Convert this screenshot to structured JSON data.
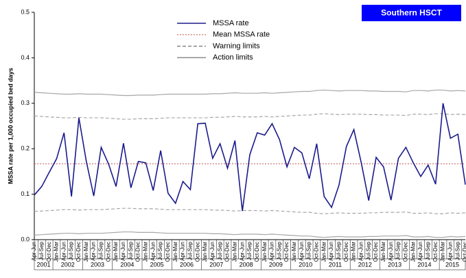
{
  "chart_data": {
    "type": "line",
    "badge": "Southern HSCT",
    "ylabel": "MSSA rate per 1,000 occupied bed days",
    "ylim": [
      0,
      0.5
    ],
    "yticks": [
      {
        "value": 0,
        "label": "0.0"
      },
      0.1,
      0.2,
      0.3,
      0.4,
      0.5
    ],
    "categories": [
      "Apr-Jun",
      "Jul-Sep",
      "Oct-Dec",
      "Jan-Mar",
      "Apr-Jun",
      "Jul-Sep",
      "Oct-Dec",
      "Jan-Mar",
      "Apr-Jun",
      "Jul-Sep",
      "Oct-Dec",
      "Jan-Mar",
      "Apr-Jun",
      "Jul-Sep",
      "Oct-Dec",
      "Jan-Mar",
      "Apr-Jun",
      "Jul-Sep",
      "Oct-Dec",
      "Jan-Mar",
      "Apr-Jun",
      "Jul-Sep",
      "Oct-Dec",
      "Jan-Mar",
      "Apr-Jun",
      "Jul-Sep",
      "Oct-Dec",
      "Jan-Mar",
      "Apr-Jun",
      "Jul-Sep",
      "Oct-Dec",
      "Jan-Mar",
      "Apr-Jun",
      "Jul-Sep",
      "Oct-Dec",
      "Jan-Mar",
      "Apr-Jun",
      "Jul-Sep",
      "Oct-Dec",
      "Jan-Mar",
      "Apr-Jun",
      "Jul-Sep",
      "Oct-Dec",
      "Jan-Mar",
      "Apr-Jun",
      "Jul-Sep",
      "Oct-Dec",
      "Jan-Mar",
      "Apr-Jun",
      "Jul-Sep",
      "Oct-Dec",
      "Jan-Mar",
      "Apr-Jun",
      "Jul-Sep",
      "Oct-Dec",
      "Jan-Mar",
      "Apr-Jun",
      "Jul-Sep",
      "Oct-Dec"
    ],
    "years": [
      "2001",
      "2002",
      "2003",
      "2004",
      "2005",
      "2006",
      "2007",
      "2008",
      "2009",
      "2010",
      "2011",
      "2012",
      "2013",
      "2014",
      "2015"
    ],
    "series": [
      {
        "name": "MSSA rate",
        "color": "#1a1a8c",
        "values": [
          0.098,
          0.117,
          0.148,
          0.178,
          0.235,
          0.095,
          0.268,
          0.172,
          0.096,
          0.203,
          0.166,
          0.117,
          0.212,
          0.114,
          0.172,
          0.169,
          0.108,
          0.196,
          0.102,
          0.08,
          0.128,
          0.11,
          0.255,
          0.256,
          0.179,
          0.211,
          0.157,
          0.218,
          0.063,
          0.187,
          0.235,
          0.23,
          0.255,
          0.22,
          0.16,
          0.203,
          0.191,
          0.134,
          0.211,
          0.095,
          0.071,
          0.12,
          0.205,
          0.242,
          0.169,
          0.086,
          0.181,
          0.16,
          0.087,
          0.179,
          0.203,
          0.169,
          0.139,
          0.164,
          0.122,
          0.3,
          0.223,
          0.232,
          0.121
        ]
      }
    ],
    "mean": {
      "name": "Mean MSSA rate",
      "color": "#c0504d",
      "value": 0.167
    },
    "limits": [
      {
        "name": "Warning limits",
        "color": "#a6a6a6",
        "dash": true,
        "upper": [
          0.272,
          0.271,
          0.27,
          0.269,
          0.268,
          0.268,
          0.269,
          0.268,
          0.268,
          0.268,
          0.267,
          0.266,
          0.265,
          0.265,
          0.266,
          0.266,
          0.266,
          0.267,
          0.268,
          0.268,
          0.268,
          0.268,
          0.268,
          0.268,
          0.269,
          0.269,
          0.27,
          0.271,
          0.27,
          0.27,
          0.27,
          0.271,
          0.27,
          0.271,
          0.272,
          0.273,
          0.274,
          0.274,
          0.276,
          0.277,
          0.276,
          0.275,
          0.276,
          0.276,
          0.276,
          0.275,
          0.275,
          0.274,
          0.274,
          0.274,
          0.273,
          0.276,
          0.276,
          0.275,
          0.277,
          0.277,
          0.275,
          0.276,
          0.275
        ],
        "lower": [
          0.062,
          0.063,
          0.064,
          0.065,
          0.066,
          0.066,
          0.065,
          0.066,
          0.066,
          0.066,
          0.067,
          0.068,
          0.069,
          0.069,
          0.068,
          0.068,
          0.068,
          0.067,
          0.066,
          0.066,
          0.066,
          0.066,
          0.066,
          0.066,
          0.065,
          0.065,
          0.064,
          0.063,
          0.064,
          0.064,
          0.064,
          0.063,
          0.064,
          0.063,
          0.062,
          0.061,
          0.06,
          0.06,
          0.058,
          0.057,
          0.058,
          0.059,
          0.058,
          0.058,
          0.058,
          0.059,
          0.059,
          0.06,
          0.06,
          0.06,
          0.061,
          0.058,
          0.058,
          0.059,
          0.057,
          0.057,
          0.059,
          0.058,
          0.059
        ]
      },
      {
        "name": "Action limits",
        "color": "#a6a6a6",
        "dash": false,
        "upper": [
          0.324,
          0.323,
          0.322,
          0.321,
          0.32,
          0.32,
          0.321,
          0.32,
          0.32,
          0.32,
          0.319,
          0.318,
          0.317,
          0.317,
          0.318,
          0.318,
          0.318,
          0.319,
          0.32,
          0.32,
          0.32,
          0.32,
          0.32,
          0.32,
          0.321,
          0.321,
          0.322,
          0.323,
          0.322,
          0.322,
          0.322,
          0.323,
          0.322,
          0.323,
          0.324,
          0.325,
          0.326,
          0.326,
          0.328,
          0.329,
          0.328,
          0.327,
          0.328,
          0.328,
          0.328,
          0.327,
          0.327,
          0.326,
          0.326,
          0.326,
          0.325,
          0.328,
          0.328,
          0.327,
          0.329,
          0.329,
          0.327,
          0.328,
          0.327
        ],
        "lower": [
          0.01,
          0.011,
          0.012,
          0.013,
          0.014,
          0.014,
          0.013,
          0.014,
          0.014,
          0.014,
          0.015,
          0.016,
          0.017,
          0.017,
          0.016,
          0.016,
          0.016,
          0.015,
          0.014,
          0.014,
          0.014,
          0.014,
          0.014,
          0.014,
          0.013,
          0.013,
          0.012,
          0.011,
          0.012,
          0.012,
          0.012,
          0.011,
          0.012,
          0.011,
          0.01,
          0.009,
          0.008,
          0.008,
          0.006,
          0.005,
          0.006,
          0.007,
          0.006,
          0.006,
          0.006,
          0.007,
          0.007,
          0.008,
          0.008,
          0.008,
          0.009,
          0.006,
          0.006,
          0.007,
          0.005,
          0.005,
          0.007,
          0.006,
          0.007
        ]
      }
    ]
  }
}
